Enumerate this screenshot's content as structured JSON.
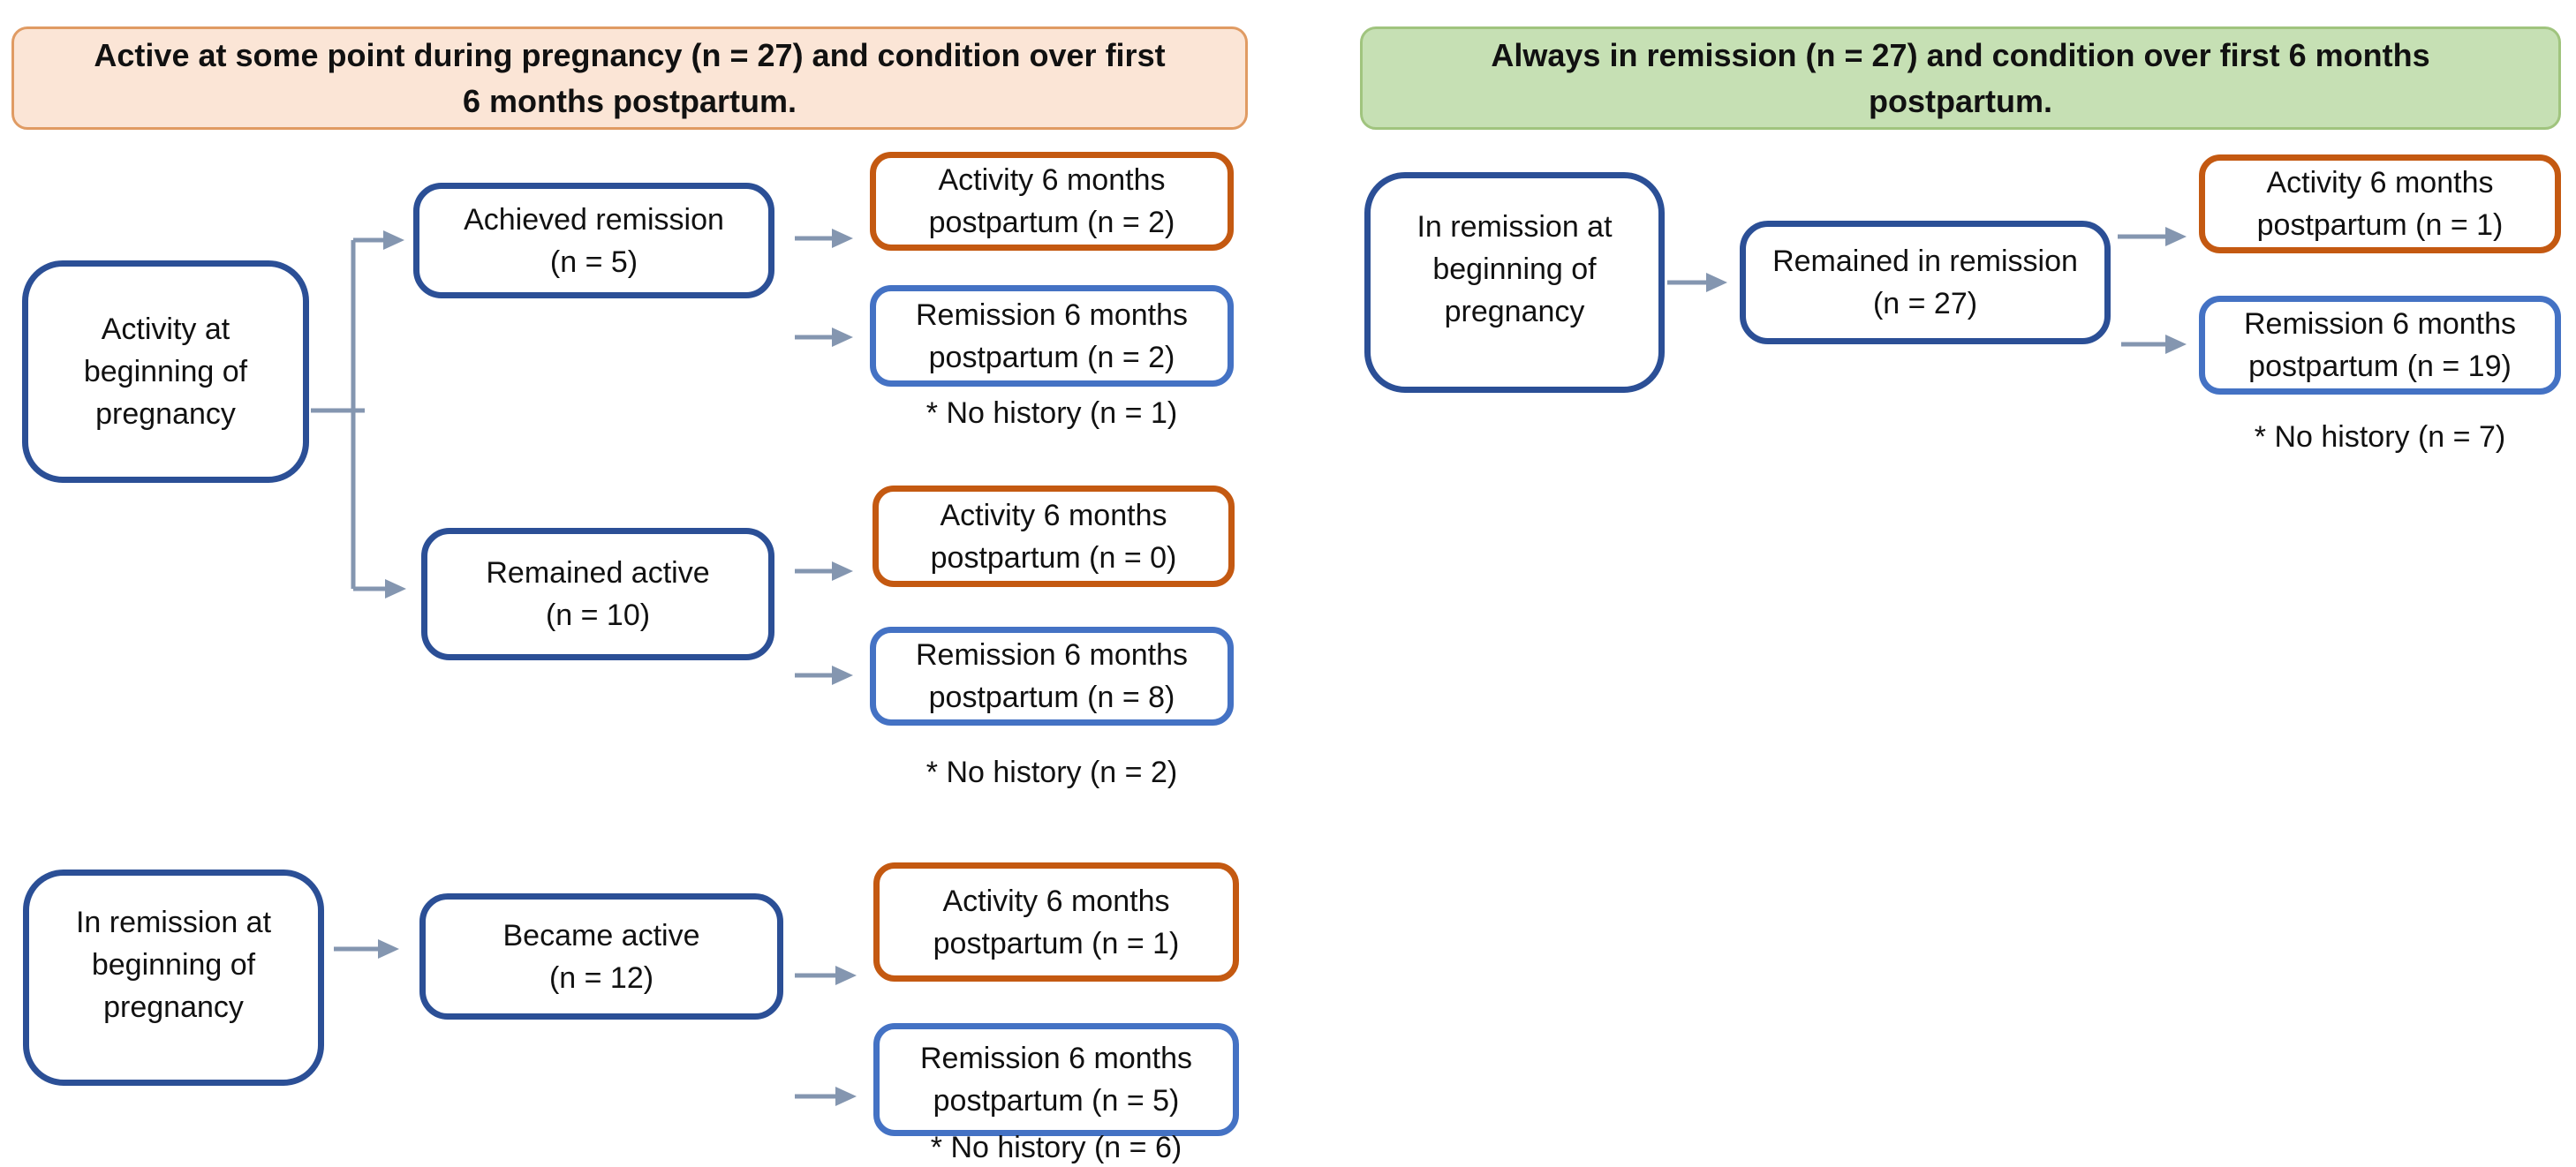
{
  "colors": {
    "navy": "#2B4F96",
    "blue": "#4472C4",
    "orange": "#C45911",
    "arrow": "#8496B0",
    "peach_fill": "#FBE5D6",
    "peach_border": "#E09B63",
    "green_fill": "#C6E0B4",
    "green_border": "#A0C47E",
    "ink": "#111111",
    "bg": "#FFFFFF"
  },
  "left_panel": {
    "header_lines": [
      "Active at some point during pregnancy (n = 27) and condition over first",
      "6 months postpartum."
    ],
    "nodes": {
      "activity_start": {
        "lines": [
          "Activity at",
          "beginning of",
          "pregnancy"
        ]
      },
      "achieved_remission": {
        "lines": [
          "Achieved remission",
          "(n = 5)"
        ]
      },
      "activity_6m_n2": {
        "lines": [
          "Activity 6 months",
          "postpartum (n = 2)"
        ]
      },
      "remission_6m_n2": {
        "lines": [
          "Remission 6 months",
          "postpartum (n = 2)"
        ]
      },
      "remained_active": {
        "lines": [
          "Remained active",
          "(n = 10)"
        ]
      },
      "activity_6m_n0": {
        "lines": [
          "Activity 6 months",
          "postpartum (n = 0)"
        ]
      },
      "remission_6m_n8": {
        "lines": [
          "Remission 6 months",
          "postpartum (n = 8)"
        ]
      },
      "in_remission_start": {
        "lines": [
          "In remission at",
          "beginning of",
          "pregnancy"
        ]
      },
      "became_active": {
        "lines": [
          "Became active",
          "(n = 12)"
        ]
      },
      "activity_6m_n1": {
        "lines": [
          "Activity 6 months",
          "postpartum (n = 1)"
        ]
      },
      "remission_6m_n5": {
        "lines": [
          "Remission 6 months",
          "postpartum (n = 5)"
        ]
      }
    },
    "notes": {
      "no_history_n1": "* No history (n = 1)",
      "no_history_n2": "* No history (n = 2)",
      "no_history_n6": "* No history (n = 6)"
    }
  },
  "right_panel": {
    "header_lines": [
      "Always in remission (n = 27) and condition over first 6 months",
      "postpartum."
    ],
    "nodes": {
      "in_remission_start": {
        "lines": [
          "In remission at",
          "beginning of",
          "pregnancy"
        ]
      },
      "remained_in_remission": {
        "lines": [
          "Remained in remission",
          "(n = 27)"
        ]
      },
      "activity_6m_n1": {
        "lines": [
          "Activity 6 months",
          "postpartum (n = 1)"
        ]
      },
      "remission_6m_n19": {
        "lines": [
          "Remission 6 months",
          "postpartum (n = 19)"
        ]
      }
    },
    "notes": {
      "no_history_n7": "* No history (n = 7)"
    }
  }
}
